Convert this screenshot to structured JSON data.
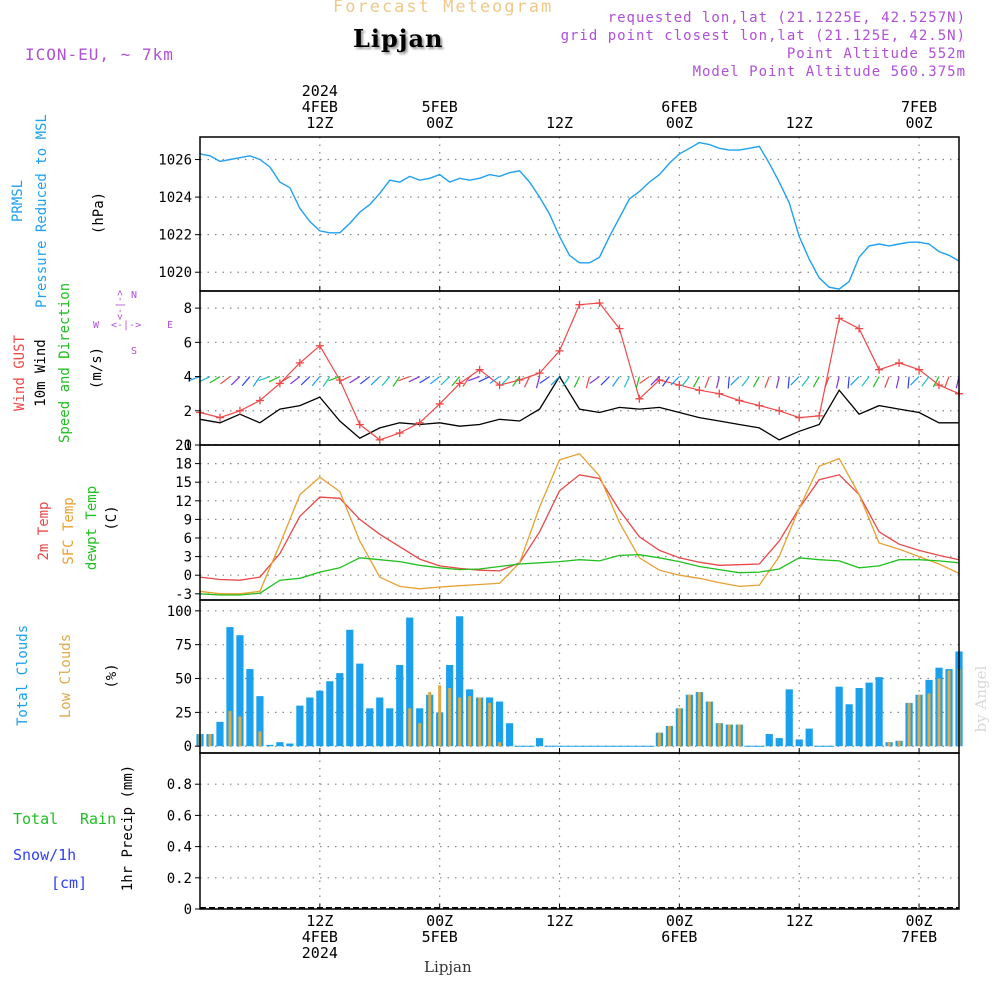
{
  "header": {
    "title": "Forecast Meteogram",
    "place": "Lipjan",
    "model": "ICON-EU, ~ 7km",
    "requested": "requested lon,lat (21.1225E, 42.5257N)",
    "gridpoint": "grid point closest lon,lat (21.125E, 42.5N)",
    "altitude": "Point Altitude 552m",
    "model_altitude": "Model Point Altitude 560.375m",
    "watermark": "by Angel",
    "footer_place": "Lipjan"
  },
  "time_axis": {
    "top_labels": [
      {
        "t": 12,
        "lines": [
          "2024",
          "4FEB",
          "12Z"
        ]
      },
      {
        "t": 24,
        "lines": [
          "5FEB",
          "00Z"
        ]
      },
      {
        "t": 36,
        "lines": [
          "12Z"
        ]
      },
      {
        "t": 48,
        "lines": [
          "6FEB",
          "00Z"
        ]
      },
      {
        "t": 60,
        "lines": [
          "12Z"
        ]
      },
      {
        "t": 72,
        "lines": [
          "7FEB",
          "00Z"
        ]
      }
    ],
    "bottom_labels": [
      {
        "t": 12,
        "lines": [
          "12Z",
          "4FEB",
          "2024"
        ]
      },
      {
        "t": 24,
        "lines": [
          "00Z",
          "5FEB"
        ]
      },
      {
        "t": 36,
        "lines": [
          "12Z"
        ]
      },
      {
        "t": 48,
        "lines": [
          "00Z",
          "6FEB"
        ]
      },
      {
        "t": 60,
        "lines": [
          "12Z"
        ]
      },
      {
        "t": 72,
        "lines": [
          "00Z",
          "7FEB"
        ]
      }
    ]
  },
  "panel_labels": {
    "pressure": {
      "name1": "PRMSL",
      "name2": "Pressure Reduced to MSL",
      "unit": "(hPa)"
    },
    "wind": {
      "gust": "Wind GUST",
      "speed": "10m Wind",
      "dir": "Speed and Direction",
      "unit": "(m/s)",
      "compass_n": "N",
      "compass_s": "S",
      "compass_w": "W",
      "compass_e": "E",
      "compass_arrow": "<-|->"
    },
    "temp": {
      "t2m": "2m Temp",
      "sfc": "SFC Temp",
      "dew": "dewpt Temp",
      "unit": "(C)"
    },
    "clouds": {
      "total": "Total Clouds",
      "low": "Low Clouds",
      "unit": "(%)"
    },
    "precip": {
      "rain_a": "Total",
      "rain_b": "Rain",
      "snow_a": "Snow/1h",
      "snow_b": "[cm]",
      "unit": "1hr Precip (mm)"
    }
  },
  "colors": {
    "pressure": "#1fa0f0",
    "gust": "#f04848",
    "wind": "#000000",
    "t2m": "#e84848",
    "sfc": "#e8a030",
    "dew": "#20c020",
    "total_clouds": "#1aa0ec",
    "low_clouds": "#dcaa48",
    "rain_label": "#20c020",
    "snow_label": "#3040f0",
    "axis_label": "#000000"
  },
  "chart_data": [
    {
      "type": "line",
      "name": "pressure",
      "xlabel": "",
      "ylabel": "(hPa)",
      "ylim": [
        1019,
        1027.2
      ],
      "yticks": [
        1020,
        1022,
        1024,
        1026
      ],
      "x": [
        0,
        1,
        2,
        3,
        4,
        5,
        6,
        7,
        8,
        9,
        10,
        11,
        12,
        13,
        14,
        15,
        16,
        17,
        18,
        19,
        20,
        21,
        22,
        23,
        24,
        25,
        26,
        27,
        28,
        29,
        30,
        31,
        32,
        33,
        34,
        35,
        36,
        37,
        38,
        39,
        40,
        41,
        42,
        43,
        44,
        45,
        46,
        47,
        48,
        49,
        50,
        51,
        52,
        53,
        54,
        55,
        56,
        57,
        58,
        59,
        60,
        61,
        62,
        63,
        64,
        65,
        66,
        67,
        68,
        69,
        70,
        71,
        72,
        73,
        74,
        75,
        76
      ],
      "y": [
        1026.3,
        1026.2,
        1025.9,
        1026.0,
        1026.1,
        1026.2,
        1026.0,
        1025.6,
        1024.8,
        1024.5,
        1023.4,
        1022.7,
        1022.2,
        1022.1,
        1022.1,
        1022.6,
        1023.2,
        1023.6,
        1024.2,
        1024.9,
        1024.8,
        1025.1,
        1024.9,
        1025.0,
        1025.2,
        1024.8,
        1025.0,
        1024.9,
        1025.0,
        1025.2,
        1025.1,
        1025.3,
        1025.4,
        1024.8,
        1024.0,
        1023.1,
        1021.9,
        1020.9,
        1020.5,
        1020.5,
        1020.8,
        1021.9,
        1022.9,
        1023.9,
        1024.3,
        1024.8,
        1025.2,
        1025.8,
        1026.3,
        1026.6,
        1026.9,
        1026.8,
        1026.6,
        1026.5,
        1026.5,
        1026.6,
        1026.7,
        1025.8,
        1024.8,
        1023.7,
        1021.9,
        1020.7,
        1019.7,
        1019.2,
        1019.1,
        1019.5,
        1020.8,
        1021.4,
        1021.5,
        1021.4,
        1021.5,
        1021.6,
        1021.6,
        1021.5,
        1021.1,
        1020.9,
        1020.6
      ]
    },
    {
      "type": "line",
      "name": "wind",
      "xlabel": "",
      "ylabel": "(m/s)",
      "ylim": [
        0,
        9
      ],
      "yticks": [
        0,
        2,
        4,
        6,
        8
      ],
      "x": [
        0,
        2,
        4,
        6,
        8,
        10,
        12,
        14,
        16,
        18,
        20,
        22,
        24,
        26,
        28,
        30,
        32,
        34,
        36,
        38,
        40,
        42,
        44,
        46,
        48,
        50,
        52,
        54,
        56,
        58,
        60,
        62,
        64,
        66,
        68,
        70,
        72,
        74,
        76
      ],
      "gust": [
        1.9,
        1.6,
        2.0,
        2.6,
        3.6,
        4.8,
        5.8,
        3.8,
        1.2,
        0.3,
        0.7,
        1.3,
        2.4,
        3.6,
        4.4,
        3.5,
        3.8,
        4.2,
        5.5,
        8.2,
        8.3,
        6.8,
        2.7,
        3.8,
        3.5,
        3.2,
        3.0,
        2.6,
        2.3,
        2.0,
        1.6,
        1.7,
        7.4,
        6.8,
        4.4,
        4.8,
        4.4,
        3.5,
        3.0
      ],
      "speed": [
        1.5,
        1.3,
        1.8,
        1.3,
        2.1,
        2.3,
        2.8,
        1.4,
        0.4,
        1.0,
        1.3,
        1.2,
        1.3,
        1.1,
        1.2,
        1.5,
        1.4,
        2.1,
        4.0,
        2.1,
        1.9,
        2.2,
        2.1,
        2.2,
        1.9,
        1.6,
        1.4,
        1.2,
        1.0,
        0.3,
        0.8,
        1.2,
        3.2,
        1.8,
        2.3,
        2.1,
        1.9,
        1.3,
        1.3
      ],
      "dir_band_y": 4
    },
    {
      "type": "line",
      "name": "temperature",
      "xlabel": "",
      "ylabel": "(C)",
      "ylim": [
        -4,
        21
      ],
      "yticks": [
        -3,
        0,
        3,
        6,
        9,
        12,
        15,
        18,
        21
      ],
      "x": [
        0,
        2,
        4,
        6,
        8,
        10,
        12,
        14,
        16,
        18,
        20,
        22,
        24,
        26,
        28,
        30,
        32,
        34,
        36,
        38,
        40,
        42,
        44,
        46,
        48,
        50,
        52,
        54,
        56,
        58,
        60,
        62,
        64,
        66,
        68,
        70,
        72,
        74,
        76
      ],
      "series": [
        {
          "name": "2m Temp",
          "values": [
            -0.3,
            -0.7,
            -0.8,
            -0.3,
            3.5,
            9.5,
            12.6,
            12.4,
            9.0,
            6.6,
            4.6,
            2.6,
            1.5,
            1.1,
            0.8,
            0.7,
            2.0,
            7.0,
            13.6,
            16.2,
            15.6,
            10.5,
            6.2,
            4.0,
            2.8,
            2.1,
            1.6,
            1.7,
            1.8,
            5.5,
            10.8,
            15.4,
            16.2,
            13.0,
            7.0,
            5.0,
            4.0,
            3.2,
            2.5
          ]
        },
        {
          "name": "SFC Temp",
          "values": [
            -2.6,
            -3.0,
            -3.0,
            -2.6,
            5.0,
            13.0,
            15.8,
            13.5,
            5.5,
            -0.3,
            -1.8,
            -2.2,
            -1.9,
            -1.7,
            -1.5,
            -1.3,
            2.0,
            11.0,
            18.6,
            19.6,
            16.0,
            8.5,
            2.8,
            0.8,
            0.0,
            -0.5,
            -1.2,
            -1.8,
            -1.6,
            3.0,
            10.8,
            17.6,
            18.8,
            13.0,
            5.2,
            4.2,
            3.0,
            1.8,
            0.3
          ]
        },
        {
          "name": "dewpt Temp",
          "values": [
            -3.0,
            -3.2,
            -3.2,
            -2.9,
            -0.8,
            -0.5,
            0.5,
            1.2,
            2.8,
            2.5,
            2.2,
            1.6,
            1.2,
            0.9,
            1.0,
            1.4,
            1.8,
            2.0,
            2.2,
            2.5,
            2.3,
            3.2,
            3.3,
            2.8,
            2.2,
            1.4,
            0.9,
            0.4,
            0.5,
            1.0,
            2.8,
            2.5,
            2.3,
            1.2,
            1.5,
            2.5,
            2.5,
            2.3,
            2.0
          ]
        }
      ]
    },
    {
      "type": "bar",
      "name": "clouds",
      "xlabel": "",
      "ylabel": "(%)",
      "ylim": [
        -5,
        108
      ],
      "yticks": [
        0,
        25,
        50,
        75,
        100
      ],
      "x": [
        0,
        1,
        2,
        3,
        4,
        5,
        6,
        7,
        8,
        9,
        10,
        11,
        12,
        13,
        14,
        15,
        16,
        17,
        18,
        19,
        20,
        21,
        22,
        23,
        24,
        25,
        26,
        27,
        28,
        29,
        30,
        31,
        32,
        33,
        34,
        35,
        36,
        37,
        38,
        39,
        40,
        41,
        42,
        43,
        44,
        45,
        46,
        47,
        48,
        49,
        50,
        51,
        52,
        53,
        54,
        55,
        56,
        57,
        58,
        59,
        60,
        61,
        62,
        63,
        64,
        65,
        66,
        67,
        68,
        69,
        70,
        71,
        72,
        73,
        74,
        75,
        76
      ],
      "series": [
        {
          "name": "Total Clouds",
          "values": [
            9,
            9,
            18,
            88,
            82,
            57,
            37,
            1,
            3,
            2,
            30,
            36,
            41,
            48,
            54,
            86,
            61,
            28,
            36,
            28,
            60,
            95,
            28,
            38,
            25,
            60,
            96,
            42,
            36,
            36,
            33,
            17,
            0,
            0,
            6,
            0,
            0,
            0,
            0,
            0,
            0,
            0,
            0,
            0,
            0,
            0,
            10,
            15,
            28,
            38,
            40,
            33,
            17,
            16,
            16,
            0,
            0,
            9,
            6,
            42,
            5,
            13,
            0,
            0,
            44,
            31,
            43,
            47,
            51,
            3,
            4,
            32,
            38,
            49,
            58,
            57,
            70
          ]
        },
        {
          "name": "Low Clouds",
          "values": [
            9,
            9,
            0,
            26,
            22,
            0,
            11,
            0,
            0,
            0,
            0,
            0,
            0,
            0,
            0,
            0,
            0,
            0,
            0,
            0,
            0,
            28,
            17,
            40,
            45,
            43,
            36,
            37,
            36,
            32,
            3,
            0,
            0,
            0,
            0,
            0,
            0,
            0,
            0,
            0,
            0,
            0,
            0,
            0,
            0,
            0,
            10,
            15,
            28,
            38,
            40,
            33,
            17,
            16,
            16,
            0,
            0,
            0,
            0,
            0,
            0,
            0,
            0,
            0,
            0,
            0,
            0,
            0,
            0,
            3,
            4,
            32,
            38,
            39,
            50,
            56,
            57
          ]
        }
      ]
    },
    {
      "type": "bar",
      "name": "precipitation",
      "xlabel": "",
      "ylabel": "1hr Precip (mm)",
      "ylim": [
        0,
        1
      ],
      "yticks": [
        0,
        0.2,
        0.4,
        0.6,
        0.8
      ],
      "x": [
        0,
        76
      ],
      "series": [
        {
          "name": "Total Rain",
          "values": [
            0,
            0
          ]
        },
        {
          "name": "Snow/1h",
          "values": [
            0,
            0
          ]
        }
      ]
    }
  ]
}
